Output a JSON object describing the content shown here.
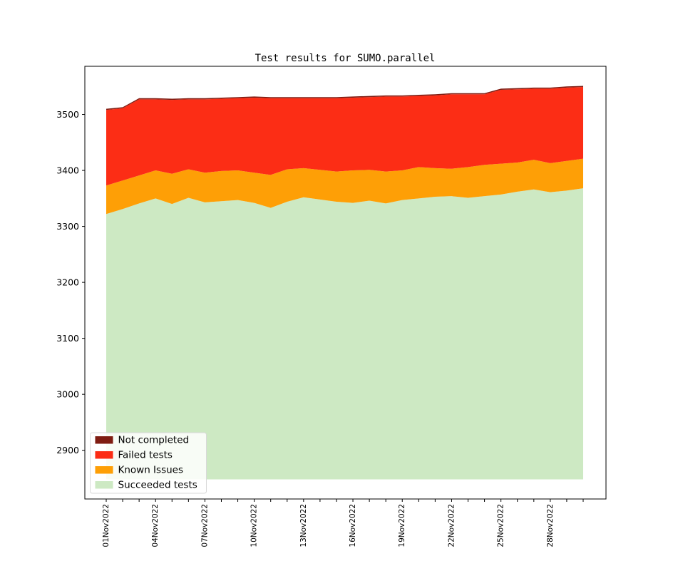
{
  "chart_data": {
    "type": "area",
    "stacked": true,
    "title": "Test results for SUMO.parallel",
    "x": [
      "01Nov2022",
      "02Nov2022",
      "03Nov2022",
      "04Nov2022",
      "05Nov2022",
      "06Nov2022",
      "07Nov2022",
      "08Nov2022",
      "09Nov2022",
      "10Nov2022",
      "11Nov2022",
      "12Nov2022",
      "13Nov2022",
      "14Nov2022",
      "15Nov2022",
      "16Nov2022",
      "17Nov2022",
      "18Nov2022",
      "19Nov2022",
      "20Nov2022",
      "21Nov2022",
      "22Nov2022",
      "23Nov2022",
      "24Nov2022",
      "25Nov2022",
      "26Nov2022",
      "27Nov2022",
      "28Nov2022",
      "29Nov2022",
      "30Nov2022"
    ],
    "x_tick_labels_shown": [
      "01Nov2022",
      "04Nov2022",
      "07Nov2022",
      "10Nov2022",
      "13Nov2022",
      "16Nov2022",
      "19Nov2022",
      "22Nov2022",
      "25Nov2022",
      "28Nov2022"
    ],
    "x_tick_label_every": 3,
    "x_tick_label_rotation": 90,
    "ylim": [
      2813,
      3586
    ],
    "yticks": [
      2900,
      3000,
      3100,
      3200,
      3300,
      3400,
      3500
    ],
    "visual_baseline": 2848,
    "grid": false,
    "legend_position": "lower left",
    "legend_entries": [
      "Not completed",
      "Failed tests",
      "Known Issues",
      "Succeeded tests"
    ],
    "series": [
      {
        "name": "Succeeded tests",
        "color": "#cde9c3",
        "values": [
          3322,
          3331,
          3341,
          3350,
          3340,
          3351,
          3343,
          3345,
          3347,
          3342,
          3333,
          3344,
          3352,
          3348,
          3344,
          3342,
          3346,
          3341,
          3347,
          3350,
          3353,
          3354,
          3351,
          3354,
          3357,
          3362,
          3366,
          3361,
          3364,
          3368
        ]
      },
      {
        "name": "Known Issues",
        "color": "#fe9f06",
        "values": [
          51,
          51,
          50,
          50,
          54,
          51,
          53,
          54,
          53,
          54,
          59,
          58,
          52,
          53,
          54,
          58,
          55,
          57,
          53,
          56,
          51,
          49,
          55,
          56,
          55,
          52,
          53,
          52,
          53,
          53
        ]
      },
      {
        "name": "Failed tests",
        "color": "#fc2d15",
        "values": [
          135,
          129,
          136,
          127,
          132,
          125,
          131,
          129,
          129,
          134,
          137,
          127,
          125,
          128,
          131,
          130,
          130,
          134,
          132,
          127,
          130,
          133,
          130,
          126,
          132,
          131,
          127,
          133,
          131,
          128
        ]
      },
      {
        "name": "Not completed",
        "color": "#7f1c12",
        "values": [
          2,
          2,
          2,
          2,
          2,
          2,
          2,
          2,
          2,
          2,
          2,
          2,
          2,
          2,
          2,
          2,
          2,
          2,
          2,
          2,
          2,
          2,
          2,
          2,
          2,
          2,
          2,
          2,
          2,
          2
        ]
      }
    ]
  }
}
